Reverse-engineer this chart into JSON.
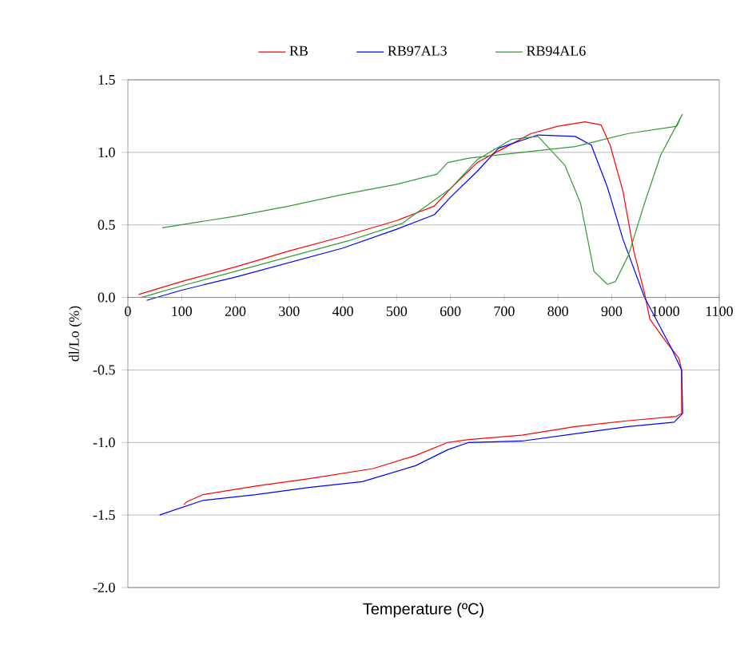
{
  "chart_data": {
    "type": "line",
    "xlabel": "Temperature (ºC)",
    "ylabel": "dl/Lo (%)",
    "xlim": [
      0,
      1100
    ],
    "ylim": [
      -2,
      1.5
    ],
    "xticks": [
      0,
      100,
      200,
      300,
      400,
      500,
      600,
      700,
      800,
      900,
      1000,
      1100
    ],
    "yticks": [
      {
        "value": -2,
        "label": "-2.0"
      },
      -1.5,
      {
        "value": -1,
        "label": "-1.0"
      },
      -0.5,
      {
        "value": 0,
        "label": "0.0"
      },
      0.5,
      {
        "value": 1,
        "label": "1.0"
      },
      1.5
    ],
    "grid": "y",
    "legend": "top",
    "series": [
      {
        "name": "RB",
        "color": "#ff0000",
        "x": [
          20,
          100,
          200,
          300,
          400,
          500,
          570,
          600,
          650,
          700,
          750,
          800,
          850,
          880,
          897,
          921,
          941,
          961,
          971,
          1000,
          1025,
          1030,
          1030,
          1020,
          931,
          832,
          733,
          634,
          595,
          535,
          456,
          337,
          238,
          139,
          109,
          104
        ],
        "values": [
          0.02,
          0.11,
          0.21,
          0.32,
          0.42,
          0.53,
          0.63,
          0.75,
          0.93,
          1.03,
          1.13,
          1.18,
          1.21,
          1.19,
          1.05,
          0.73,
          0.32,
          0.03,
          -0.15,
          -0.3,
          -0.42,
          -0.5,
          -0.8,
          -0.82,
          -0.85,
          -0.89,
          -0.95,
          -0.98,
          -1.0,
          -1.09,
          -1.18,
          -1.25,
          -1.3,
          -1.36,
          -1.41,
          -1.43
        ]
      },
      {
        "name": "RB97AL3",
        "color": "#0000ff",
        "x": [
          35,
          100,
          200,
          300,
          400,
          500,
          570,
          600,
          650,
          690,
          763,
          832,
          862,
          892,
          921,
          961,
          1011,
          1030,
          1032,
          1016,
          931,
          832,
          733,
          634,
          595,
          535,
          436,
          337,
          238,
          139,
          59
        ],
        "values": [
          -0.02,
          0.05,
          0.14,
          0.24,
          0.34,
          0.47,
          0.57,
          0.69,
          0.87,
          1.03,
          1.12,
          1.11,
          1.05,
          0.76,
          0.4,
          0.0,
          -0.35,
          -0.5,
          -0.8,
          -0.86,
          -0.89,
          -0.94,
          -0.99,
          -1.0,
          -1.05,
          -1.16,
          -1.27,
          -1.31,
          -1.36,
          -1.4,
          -1.5
        ]
      },
      {
        "name": "RB94AL6",
        "color": "#339933",
        "x": [
          64,
          200,
          300,
          400,
          500,
          575,
          595,
          634,
          733,
          832,
          931,
          1021,
          1031,
          991,
          961,
          931,
          907,
          892,
          867,
          842,
          813,
          763,
          714,
          650,
          600,
          510,
          410,
          310,
          210,
          110,
          25
        ],
        "values": [
          0.48,
          0.56,
          0.63,
          0.71,
          0.78,
          0.85,
          0.93,
          0.96,
          1.0,
          1.04,
          1.13,
          1.18,
          1.26,
          0.98,
          0.65,
          0.29,
          0.11,
          0.09,
          0.18,
          0.65,
          0.91,
          1.11,
          1.09,
          0.95,
          0.75,
          0.51,
          0.39,
          0.29,
          0.19,
          0.09,
          0
        ]
      }
    ]
  }
}
